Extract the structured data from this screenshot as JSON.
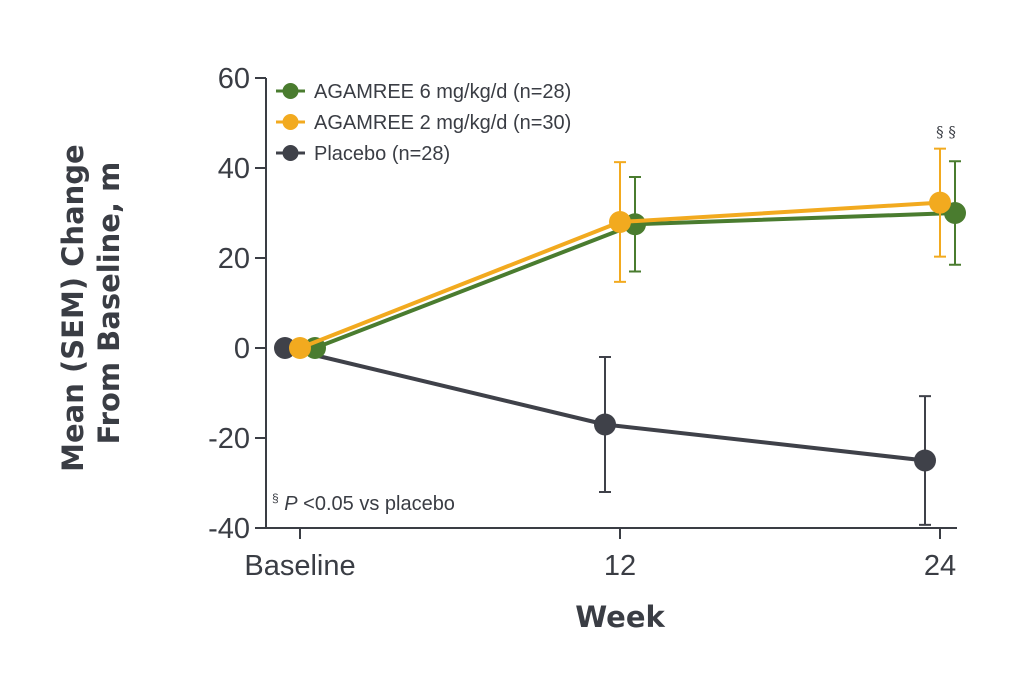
{
  "chart_data": {
    "type": "line",
    "xlabel": "Week",
    "ylabel_lines": [
      "Mean (SEM) Change",
      "From Baseline, m"
    ],
    "categories": [
      "Baseline",
      "12",
      "24"
    ],
    "x_tick_labels": [
      "Baseline",
      "12",
      "24"
    ],
    "y_ticks": [
      "60",
      "40",
      "20",
      "0",
      "-20",
      "-40"
    ],
    "ylim": [
      -40,
      60
    ],
    "grid": false,
    "legend_position": "top-left",
    "series": [
      {
        "name": "AGAMREE 6 mg/kg/d (n=28)",
        "color": "#4a7c2f",
        "values": [
          0,
          27.5,
          30
        ],
        "error": [
          null,
          10.5,
          11.5
        ]
      },
      {
        "name": "AGAMREE 2 mg/kg/d (n=30)",
        "color": "#f2aa1f",
        "values": [
          0,
          28,
          32.3
        ],
        "error": [
          null,
          13.3,
          12
        ]
      },
      {
        "name": "Placebo (n=28)",
        "color": "#3f4149",
        "values": [
          0,
          -17,
          -25
        ],
        "error": [
          null,
          15,
          14.3
        ]
      }
    ],
    "annotations": [
      {
        "text": "§ §",
        "x": "24",
        "note": "significance marks above week 24 treatment groups"
      }
    ],
    "footnote": {
      "symbol": "§",
      "p_text": "P",
      "rest": "<0.05 vs placebo"
    }
  }
}
